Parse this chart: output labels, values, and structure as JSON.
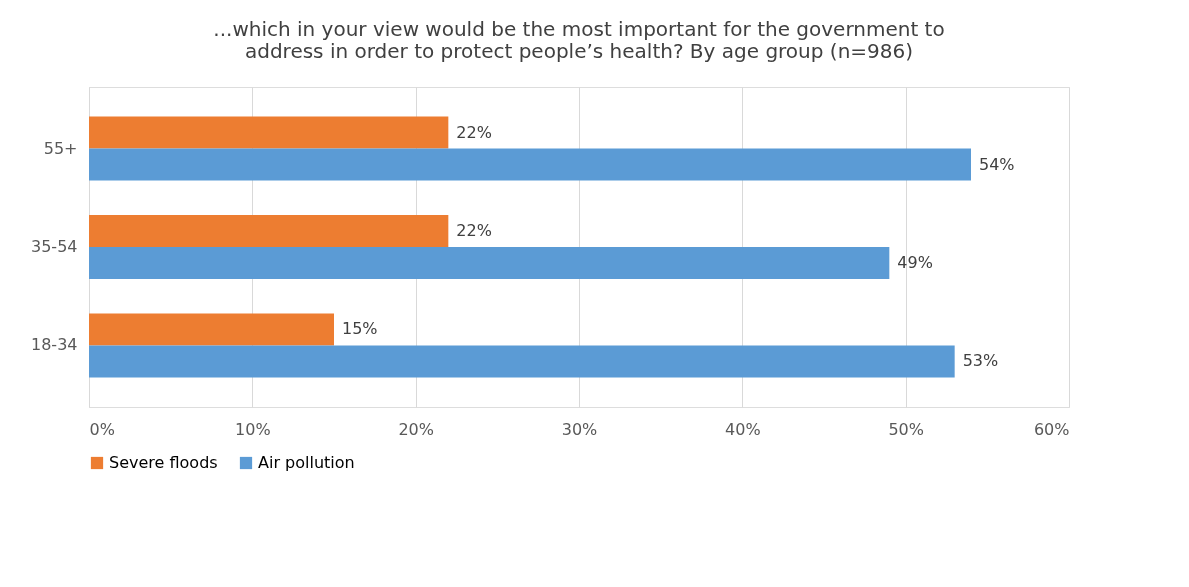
{
  "chart_data": {
    "type": "bar",
    "orientation": "horizontal",
    "title": "...which in your view would be the most important for the government to\naddress in order to protect people’s health? By age group (n=986)",
    "categories": [
      "55+",
      "35-54",
      "18-34"
    ],
    "series": [
      {
        "name": "Severe floods",
        "color": "#ed7d31",
        "values": [
          22,
          22,
          15
        ],
        "value_labels": [
          "22%",
          "22%",
          "15%"
        ]
      },
      {
        "name": "Air pollution",
        "color": "#5b9bd5",
        "values": [
          54,
          49,
          53
        ],
        "value_labels": [
          "54%",
          "49%",
          "53%"
        ]
      }
    ],
    "xlim": [
      0,
      60
    ],
    "xticks": [
      {
        "value": 0,
        "label": "0%"
      },
      {
        "value": 10,
        "label": "10%"
      },
      {
        "value": 20,
        "label": "20%"
      },
      {
        "value": 30,
        "label": "30%"
      },
      {
        "value": 40,
        "label": "40%"
      },
      {
        "value": 50,
        "label": "50%"
      },
      {
        "value": 60,
        "label": "60%"
      }
    ],
    "grid": "x",
    "legend": "bottom"
  }
}
